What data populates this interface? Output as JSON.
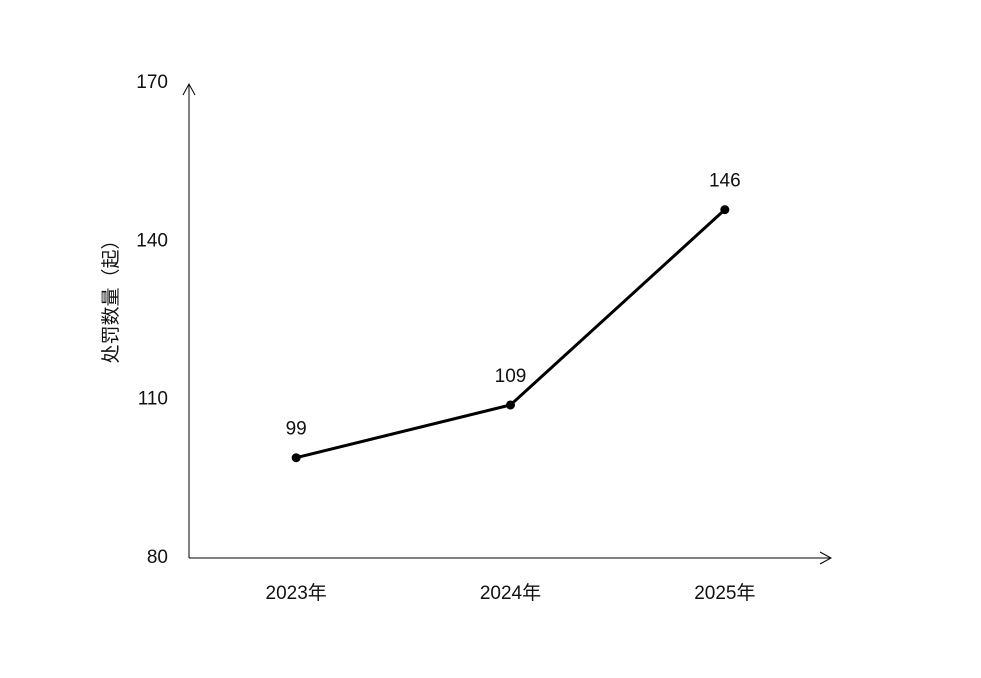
{
  "chart_data": {
    "type": "line",
    "y_label": "处罚数量（起）",
    "categories": [
      "2023年",
      "2024年",
      "2025年"
    ],
    "values": [
      99,
      109,
      146
    ],
    "color": "#000000",
    "ylim": [
      80,
      170
    ],
    "yticks": [
      80,
      110,
      140,
      170
    ],
    "grid": false
  }
}
